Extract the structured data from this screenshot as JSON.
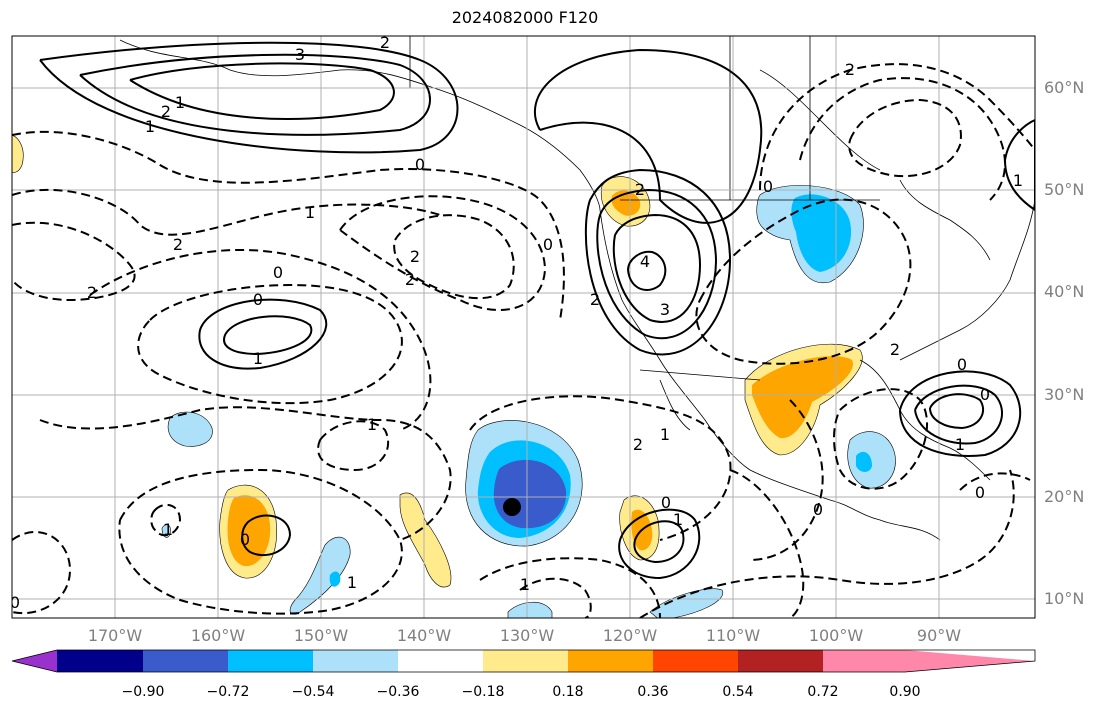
{
  "title": "2024082000 F120",
  "lat_labels": [
    "60°N",
    "50°N",
    "40°N",
    "30°N",
    "20°N",
    "10°N"
  ],
  "lon_labels": [
    "170°W",
    "160°W",
    "150°W",
    "140°W",
    "130°W",
    "120°W",
    "110°W",
    "100°W",
    "90°W"
  ],
  "colorbar": {
    "ticks": [
      "−0.90",
      "−0.72",
      "−0.54",
      "−0.36",
      "−0.18",
      "0.18",
      "0.36",
      "0.54",
      "0.72",
      "0.90"
    ],
    "colors": [
      "#9932CC",
      "#00008B",
      "#3A5BCC",
      "#00BFFF",
      "#ADE1FA",
      "#FFFFFF",
      "#FFEB8C",
      "#FFA500",
      "#FF4500",
      "#B22222",
      "#FF88AA"
    ]
  },
  "contour_labels": [
    "3",
    "2",
    "1",
    "2",
    "0",
    "1",
    "2",
    "2",
    "2",
    "2",
    "0",
    "0",
    "1",
    "4",
    "3",
    "2",
    "0",
    "2",
    "2",
    "0",
    "1",
    "1",
    "1",
    "0",
    "1",
    "1",
    "0",
    "2",
    "1",
    "1",
    "0",
    "0",
    "0",
    "1",
    "0",
    "0",
    "1",
    "2"
  ],
  "colors": {
    "land_outline": "#000000",
    "grid": "#b0b0b0",
    "label_gray": "#808080"
  }
}
